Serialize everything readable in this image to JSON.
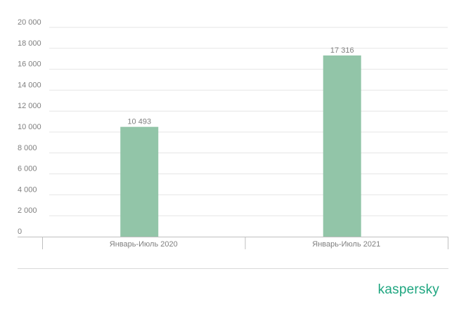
{
  "brand": {
    "logo_text": "kaspersky",
    "logo_color": "#1fa680"
  },
  "chart_data": {
    "type": "bar",
    "categories": [
      "Январь-Июль 2020",
      "Январь-Июль 2021"
    ],
    "values": [
      10493,
      17316
    ],
    "value_labels": [
      "10 493",
      "17 316"
    ],
    "ylim": [
      0,
      20000
    ],
    "yticks": [
      0,
      2000,
      4000,
      6000,
      8000,
      10000,
      12000,
      14000,
      16000,
      18000,
      20000
    ],
    "ytick_labels": [
      "0",
      "2 000",
      "4 000",
      "6 000",
      "8 000",
      "10 000",
      "12 000",
      "14 000",
      "16 000",
      "18 000",
      "20 000"
    ],
    "grid": true,
    "bar_color": "#92c5a8",
    "title": "",
    "xlabel": "",
    "ylabel": ""
  }
}
